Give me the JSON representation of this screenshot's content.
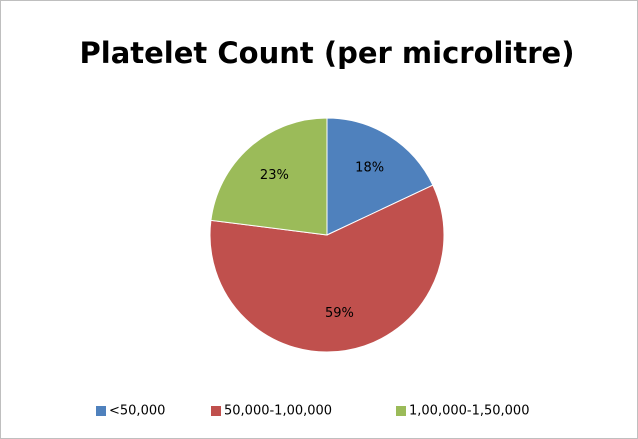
{
  "chart_data": {
    "type": "pie",
    "title": "Platelet Count (per microlitre)",
    "categories": [
      "<50,000",
      "50,000-1,00,000",
      "1,00,000-1,50,000"
    ],
    "values": [
      18,
      59,
      23
    ],
    "value_labels": [
      "18%",
      "59%",
      "23%"
    ],
    "colors": [
      "#4f81bd",
      "#c0504d",
      "#9bbb59"
    ],
    "legend": "bottom"
  }
}
